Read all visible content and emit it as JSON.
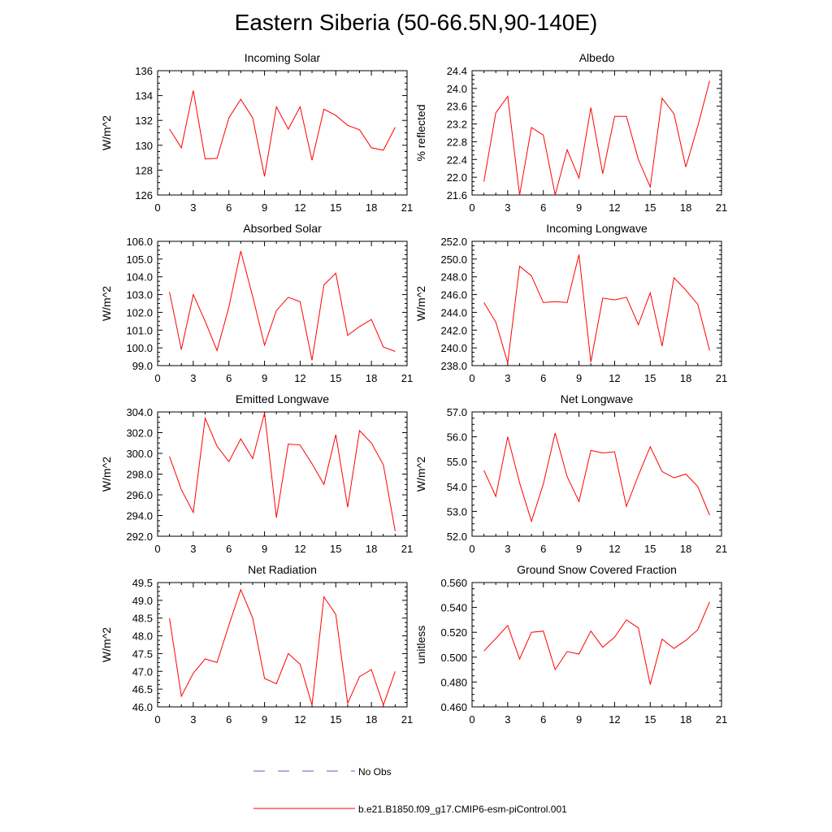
{
  "title": "Eastern Siberia (50-66.5N,90-140E)",
  "colors": {
    "model": "#ff0000",
    "obs": "#5b5bd6",
    "axis": "#000000"
  },
  "legend": {
    "obs_label": "No Obs",
    "model_label": "b.e21.B1850.f09_g17.CMIP6-esm-piControl.001"
  },
  "chart_data": [
    {
      "type": "line",
      "title": "Incoming Solar",
      "ylabel": "W/m^2",
      "xlim": [
        0,
        21
      ],
      "ylim": [
        126,
        136
      ],
      "xticks": [
        "0",
        "3",
        "6",
        "9",
        "12",
        "15",
        "18",
        "21"
      ],
      "xtick_values": [
        0,
        3,
        6,
        9,
        12,
        15,
        18,
        21
      ],
      "yticks": [
        "126",
        "128",
        "130",
        "132",
        "134",
        "136"
      ],
      "ytick_values": [
        126,
        128,
        130,
        132,
        134,
        136
      ],
      "series": [
        {
          "x": [
            1,
            2,
            3,
            4,
            5,
            6,
            7,
            8,
            9,
            10,
            11,
            12,
            13,
            14,
            15,
            16,
            17,
            18,
            19,
            20
          ],
          "values": [
            131.3,
            129.8,
            134.4,
            128.9,
            128.95,
            132.2,
            133.7,
            132.2,
            127.5,
            133.1,
            131.3,
            133.1,
            128.8,
            132.9,
            132.4,
            131.6,
            131.25,
            129.8,
            129.6,
            131.45
          ]
        }
      ]
    },
    {
      "type": "line",
      "title": "Albedo",
      "ylabel": "% reflected",
      "xlim": [
        0,
        21
      ],
      "ylim": [
        21.6,
        24.4
      ],
      "xticks": [
        "0",
        "3",
        "6",
        "9",
        "12",
        "15",
        "18",
        "21"
      ],
      "xtick_values": [
        0,
        3,
        6,
        9,
        12,
        15,
        18,
        21
      ],
      "yticks": [
        "21.6",
        "22.0",
        "22.4",
        "22.8",
        "23.2",
        "23.6",
        "24.0",
        "24.4"
      ],
      "ytick_values": [
        21.6,
        22.0,
        22.4,
        22.8,
        23.2,
        23.6,
        24.0,
        24.4
      ],
      "series": [
        {
          "x": [
            1,
            2,
            3,
            4,
            5,
            6,
            7,
            8,
            9,
            10,
            11,
            12,
            13,
            14,
            15,
            16,
            17,
            18,
            19,
            20
          ],
          "values": [
            21.9,
            23.45,
            23.82,
            21.6,
            23.12,
            22.95,
            21.6,
            22.62,
            21.98,
            23.57,
            22.08,
            23.37,
            23.37,
            22.4,
            21.78,
            23.78,
            23.43,
            22.23,
            23.15,
            24.17
          ]
        }
      ]
    },
    {
      "type": "line",
      "title": "Absorbed Solar",
      "ylabel": "W/m^2",
      "xlim": [
        0,
        21
      ],
      "ylim": [
        99,
        106
      ],
      "xticks": [
        "0",
        "3",
        "6",
        "9",
        "12",
        "15",
        "18",
        "21"
      ],
      "xtick_values": [
        0,
        3,
        6,
        9,
        12,
        15,
        18,
        21
      ],
      "yticks": [
        "99.0",
        "100.0",
        "101.0",
        "102.0",
        "103.0",
        "104.0",
        "105.0",
        "106.0"
      ],
      "ytick_values": [
        99,
        100,
        101,
        102,
        103,
        104,
        105,
        106
      ],
      "series": [
        {
          "x": [
            1,
            2,
            3,
            4,
            5,
            6,
            7,
            8,
            9,
            10,
            11,
            12,
            13,
            14,
            15,
            16,
            17,
            18,
            19,
            20
          ],
          "values": [
            103.15,
            99.9,
            103.0,
            101.5,
            99.85,
            102.3,
            105.45,
            102.9,
            100.15,
            102.1,
            102.85,
            102.6,
            99.3,
            103.55,
            104.2,
            100.7,
            101.2,
            101.6,
            100.05,
            99.8
          ]
        }
      ]
    },
    {
      "type": "line",
      "title": "Incoming Longwave",
      "ylabel": "W/m^2",
      "xlim": [
        0,
        21
      ],
      "ylim": [
        238,
        252
      ],
      "xticks": [
        "0",
        "3",
        "6",
        "9",
        "12",
        "15",
        "18",
        "21"
      ],
      "xtick_values": [
        0,
        3,
        6,
        9,
        12,
        15,
        18,
        21
      ],
      "yticks": [
        "238.0",
        "240.0",
        "242.0",
        "244.0",
        "246.0",
        "248.0",
        "250.0",
        "252.0"
      ],
      "ytick_values": [
        238,
        240,
        242,
        244,
        246,
        248,
        250,
        252
      ],
      "series": [
        {
          "x": [
            1,
            2,
            3,
            4,
            5,
            6,
            7,
            8,
            9,
            10,
            11,
            12,
            13,
            14,
            15,
            16,
            17,
            18,
            19,
            20
          ],
          "values": [
            245.1,
            242.9,
            238.3,
            249.2,
            248.1,
            245.1,
            245.2,
            245.1,
            250.5,
            238.4,
            245.6,
            245.4,
            245.7,
            242.6,
            246.2,
            240.2,
            247.9,
            246.5,
            244.9,
            239.7
          ]
        }
      ]
    },
    {
      "type": "line",
      "title": "Emitted Longwave",
      "ylabel": "W/m^2",
      "xlim": [
        0,
        21
      ],
      "ylim": [
        292,
        304
      ],
      "xticks": [
        "0",
        "3",
        "6",
        "9",
        "12",
        "15",
        "18",
        "21"
      ],
      "xtick_values": [
        0,
        3,
        6,
        9,
        12,
        15,
        18,
        21
      ],
      "yticks": [
        "292.0",
        "294.0",
        "296.0",
        "298.0",
        "300.0",
        "302.0",
        "304.0"
      ],
      "ytick_values": [
        292,
        294,
        296,
        298,
        300,
        302,
        304
      ],
      "series": [
        {
          "x": [
            1,
            2,
            3,
            4,
            5,
            6,
            7,
            8,
            9,
            10,
            11,
            12,
            13,
            14,
            15,
            16,
            17,
            18,
            19,
            20
          ],
          "values": [
            299.7,
            296.5,
            294.3,
            303.4,
            300.7,
            299.2,
            301.4,
            299.5,
            303.9,
            293.8,
            300.9,
            300.8,
            299.0,
            297.0,
            301.8,
            294.8,
            302.2,
            301.0,
            298.9,
            292.5
          ]
        }
      ]
    },
    {
      "type": "line",
      "title": "Net Longwave",
      "ylabel": "W/m^2",
      "xlim": [
        0,
        21
      ],
      "ylim": [
        52,
        57
      ],
      "xticks": [
        "0",
        "3",
        "6",
        "9",
        "12",
        "15",
        "18",
        "21"
      ],
      "xtick_values": [
        0,
        3,
        6,
        9,
        12,
        15,
        18,
        21
      ],
      "yticks": [
        "52.0",
        "53.0",
        "54.0",
        "55.0",
        "56.0",
        "57.0"
      ],
      "ytick_values": [
        52,
        53,
        54,
        55,
        56,
        57
      ],
      "series": [
        {
          "x": [
            1,
            2,
            3,
            4,
            5,
            6,
            7,
            8,
            9,
            10,
            11,
            12,
            13,
            14,
            15,
            16,
            17,
            18,
            19,
            20
          ],
          "values": [
            54.65,
            53.6,
            56.0,
            54.15,
            52.6,
            54.1,
            56.15,
            54.4,
            53.4,
            55.45,
            55.35,
            55.4,
            53.2,
            54.45,
            55.6,
            54.6,
            54.35,
            54.5,
            54.0,
            52.85
          ]
        }
      ]
    },
    {
      "type": "line",
      "title": "Net Radiation",
      "ylabel": "W/m^2",
      "xlim": [
        0,
        21
      ],
      "ylim": [
        46,
        49.5
      ],
      "xticks": [
        "0",
        "3",
        "6",
        "9",
        "12",
        "15",
        "18",
        "21"
      ],
      "xtick_values": [
        0,
        3,
        6,
        9,
        12,
        15,
        18,
        21
      ],
      "yticks": [
        "46.0",
        "46.5",
        "47.0",
        "47.5",
        "48.0",
        "48.5",
        "49.0",
        "49.5"
      ],
      "ytick_values": [
        46,
        46.5,
        47,
        47.5,
        48,
        48.5,
        49,
        49.5
      ],
      "series": [
        {
          "x": [
            1,
            2,
            3,
            4,
            5,
            6,
            7,
            8,
            9,
            10,
            11,
            12,
            13,
            14,
            15,
            16,
            17,
            18,
            19,
            20
          ],
          "values": [
            48.5,
            46.3,
            46.95,
            47.35,
            47.25,
            48.3,
            49.3,
            48.5,
            46.8,
            46.65,
            47.5,
            47.2,
            46.05,
            49.1,
            48.6,
            46.1,
            46.85,
            47.05,
            46.05,
            47.0
          ]
        }
      ]
    },
    {
      "type": "line",
      "title": "Ground Snow Covered Fraction",
      "ylabel": "unitless",
      "xlim": [
        0,
        21
      ],
      "ylim": [
        0.46,
        0.56
      ],
      "xticks": [
        "0",
        "3",
        "6",
        "9",
        "12",
        "15",
        "18",
        "21"
      ],
      "xtick_values": [
        0,
        3,
        6,
        9,
        12,
        15,
        18,
        21
      ],
      "yticks": [
        "0.460",
        "0.480",
        "0.500",
        "0.520",
        "0.540",
        "0.560"
      ],
      "ytick_values": [
        0.46,
        0.48,
        0.5,
        0.52,
        0.54,
        0.56
      ],
      "series": [
        {
          "x": [
            1,
            2,
            3,
            4,
            5,
            6,
            7,
            8,
            9,
            10,
            11,
            12,
            13,
            14,
            15,
            16,
            17,
            18,
            19,
            20
          ],
          "values": [
            0.505,
            0.515,
            0.5255,
            0.4985,
            0.52,
            0.521,
            0.49,
            0.5045,
            0.5025,
            0.521,
            0.508,
            0.516,
            0.53,
            0.5235,
            0.478,
            0.5145,
            0.507,
            0.5135,
            0.522,
            0.5445
          ]
        }
      ]
    }
  ]
}
